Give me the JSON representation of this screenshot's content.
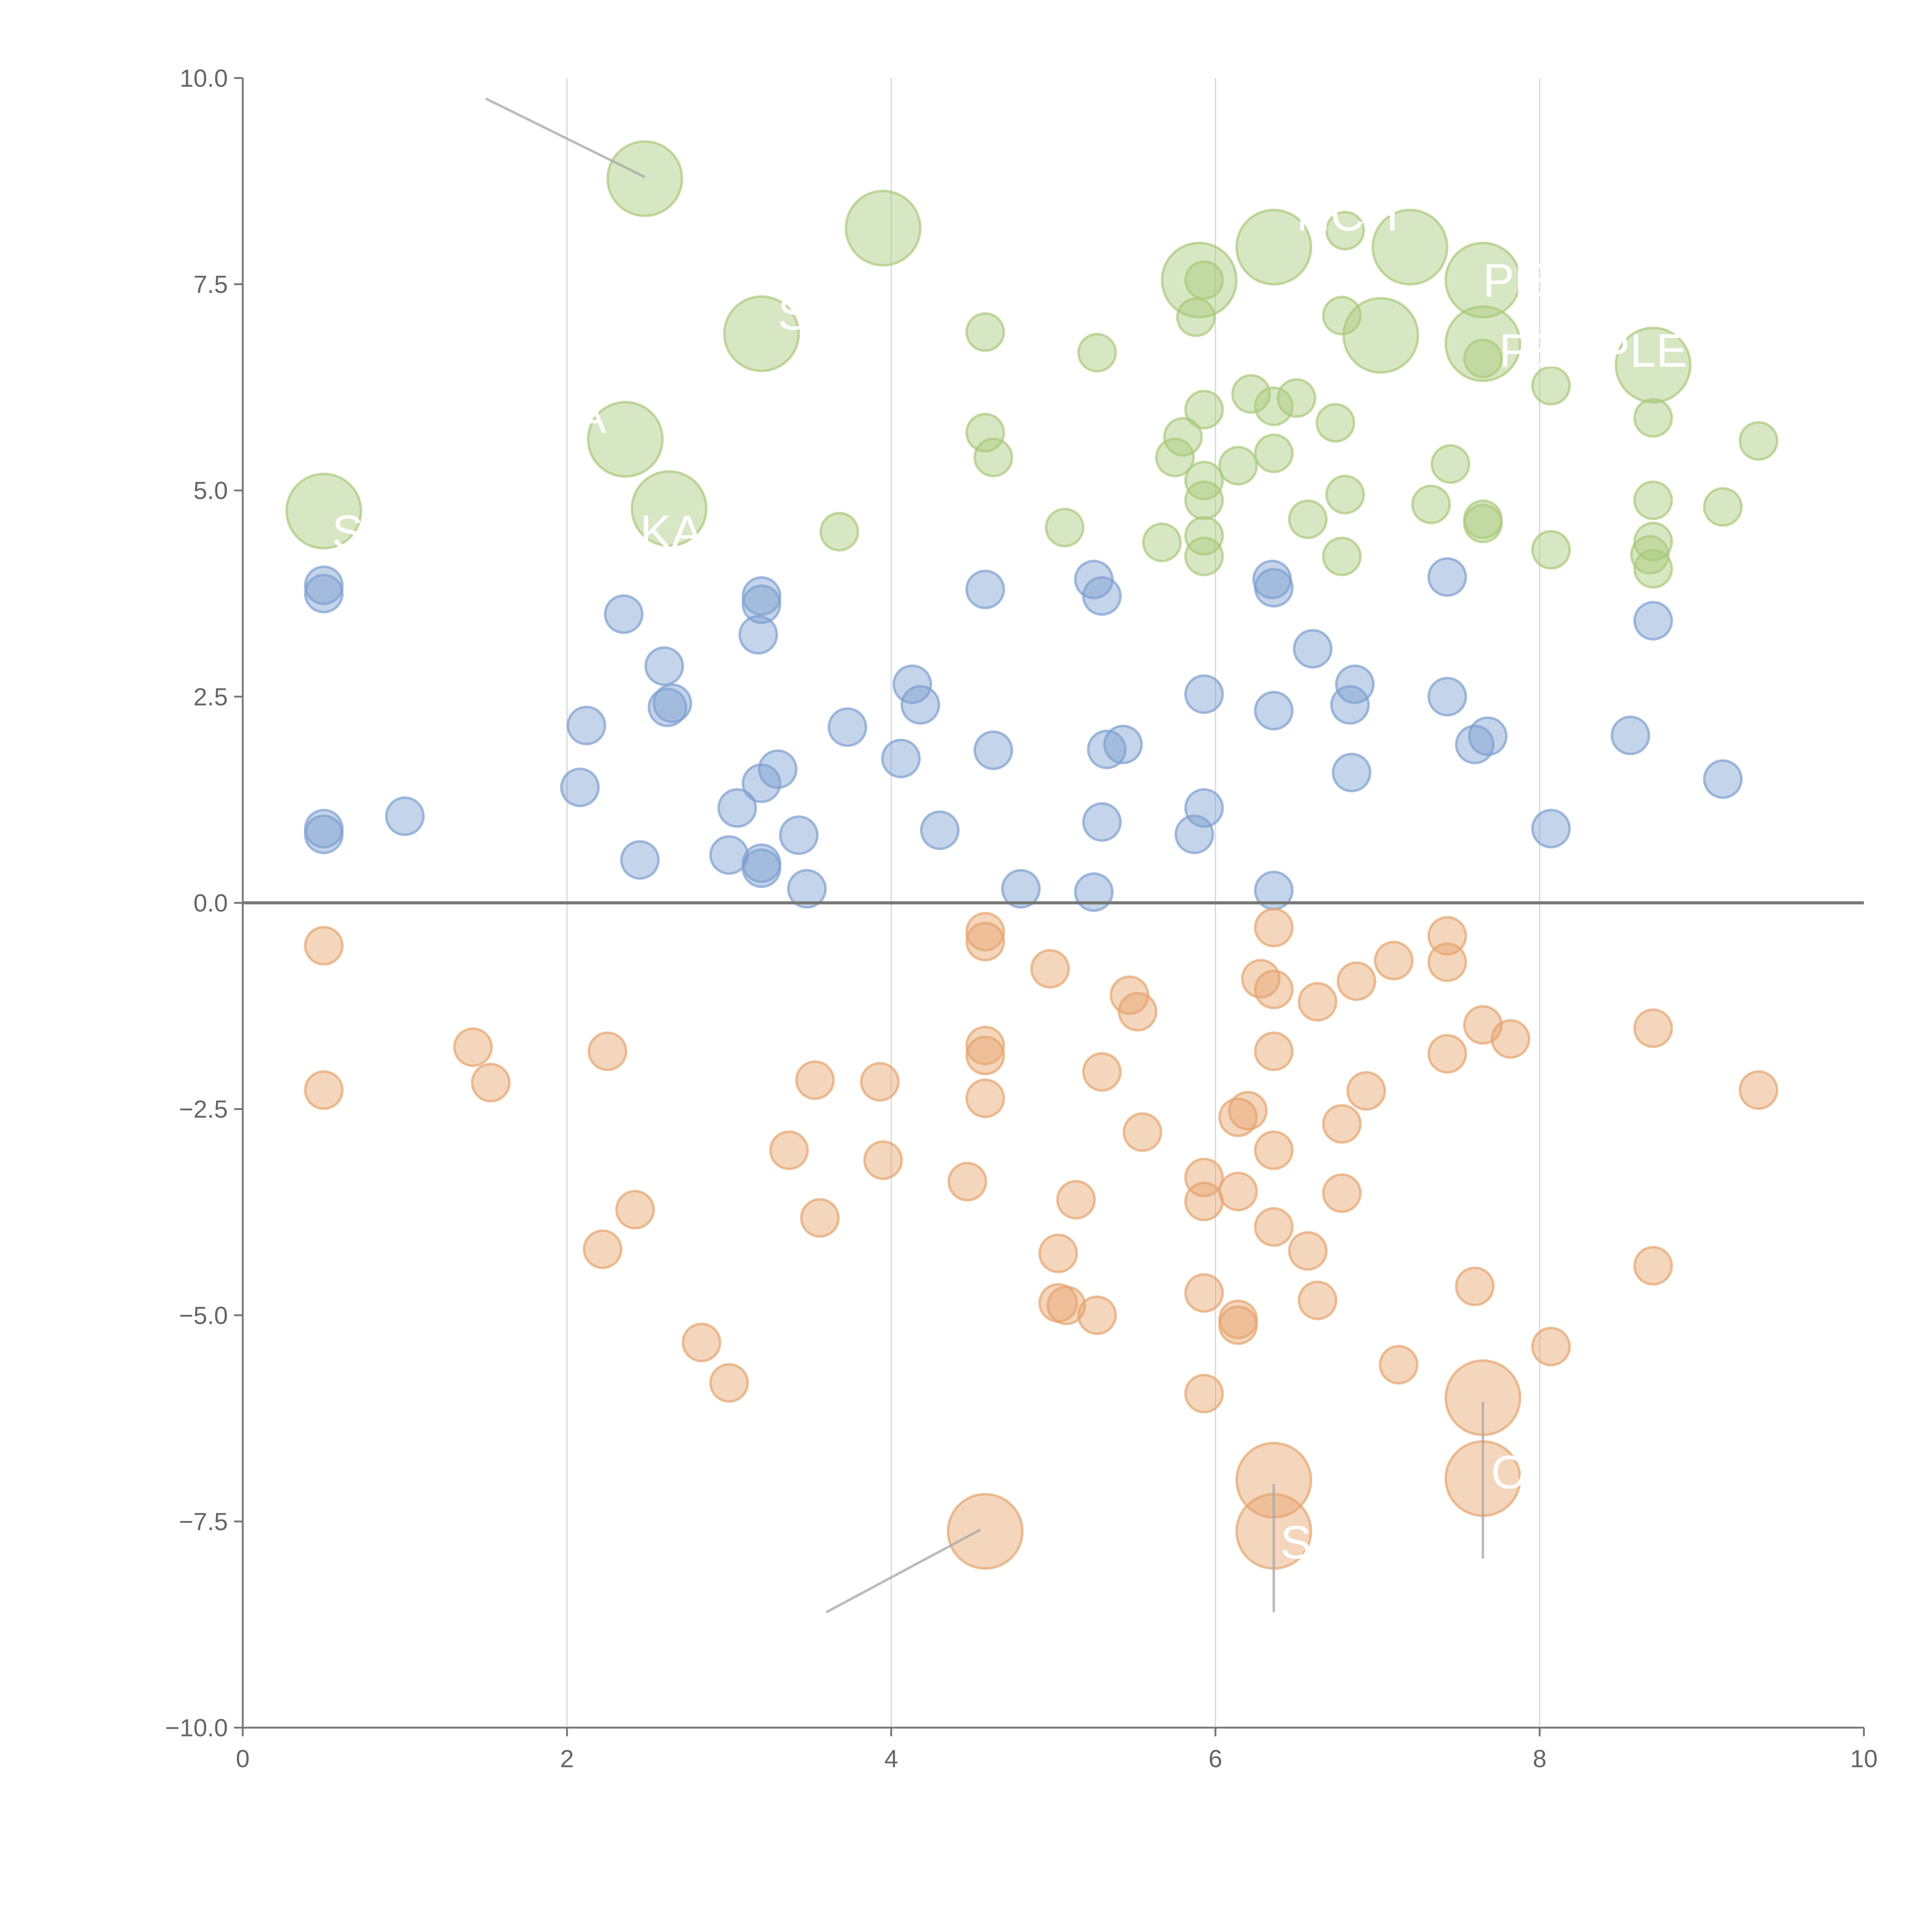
{
  "chart_data": {
    "type": "scatter",
    "title": "",
    "xlabel": "",
    "ylabel": "",
    "xlim": [
      0,
      10
    ],
    "ylim": [
      -10,
      10
    ],
    "grid": "vertical lines at x ticks",
    "x_ticks": [
      "0",
      "2",
      "4",
      "6",
      "8",
      "10"
    ],
    "x_tick_values": [
      0,
      2,
      4,
      6,
      8,
      10
    ],
    "y_ticks": [
      "10.0",
      "7.5",
      "5.0",
      "2.5",
      "0.0",
      "−2.5",
      "−5.0",
      "−7.5",
      "−10.0"
    ],
    "y_tick_values": [
      10,
      7.5,
      5,
      2.5,
      0,
      -2.5,
      -5,
      -7.5,
      -10
    ],
    "series": [
      {
        "name": "green",
        "color": "#a9c97a",
        "points": [
          [
            2.48,
            8.78,
            2
          ],
          [
            3.95,
            8.18,
            2
          ],
          [
            6.36,
            7.95,
            2
          ],
          [
            7.2,
            7.95,
            2
          ],
          [
            5.9,
            7.55,
            2
          ],
          [
            7.65,
            7.55,
            2
          ],
          [
            3.2,
            6.9,
            2
          ],
          [
            7.02,
            6.88,
            2
          ],
          [
            7.65,
            6.78,
            2
          ],
          [
            8.7,
            6.52,
            2
          ],
          [
            2.36,
            5.62,
            2
          ],
          [
            0.5,
            4.75,
            2
          ],
          [
            2.63,
            4.78,
            2
          ],
          [
            6.8,
            8.15,
            1
          ],
          [
            5.93,
            7.55,
            1
          ],
          [
            5.88,
            7.1,
            1
          ],
          [
            6.78,
            7.12,
            1
          ],
          [
            4.58,
            6.92,
            1
          ],
          [
            5.27,
            6.67,
            1
          ],
          [
            7.65,
            6.6,
            1
          ],
          [
            8.07,
            6.27,
            1
          ],
          [
            6.22,
            6.17,
            1
          ],
          [
            6.5,
            6.12,
            1
          ],
          [
            6.36,
            6.02,
            1
          ],
          [
            5.93,
            5.98,
            1
          ],
          [
            6.74,
            5.82,
            1
          ],
          [
            8.7,
            5.88,
            1
          ],
          [
            9.35,
            5.6,
            1
          ],
          [
            4.58,
            5.7,
            1
          ],
          [
            5.8,
            5.65,
            1
          ],
          [
            4.63,
            5.4,
            1
          ],
          [
            5.75,
            5.4,
            1
          ],
          [
            6.14,
            5.3,
            1
          ],
          [
            6.36,
            5.45,
            1
          ],
          [
            7.45,
            5.32,
            1
          ],
          [
            5.93,
            5.12,
            1
          ],
          [
            6.8,
            4.95,
            1
          ],
          [
            8.7,
            4.88,
            1
          ],
          [
            5.93,
            4.88,
            1
          ],
          [
            7.33,
            4.83,
            1
          ],
          [
            9.13,
            4.8,
            1
          ],
          [
            6.57,
            4.65,
            1
          ],
          [
            7.65,
            4.65,
            1
          ],
          [
            7.65,
            4.6,
            1
          ],
          [
            5.07,
            4.55,
            1
          ],
          [
            3.68,
            4.5,
            1
          ],
          [
            5.93,
            4.45,
            1
          ],
          [
            5.67,
            4.37,
            1
          ],
          [
            8.7,
            4.38,
            1
          ],
          [
            8.07,
            4.28,
            1
          ],
          [
            8.68,
            4.22,
            1
          ],
          [
            5.93,
            4.2,
            1
          ],
          [
            6.78,
            4.2,
            1
          ],
          [
            8.7,
            4.05,
            1
          ]
        ]
      },
      {
        "name": "blue",
        "color": "#7d9fd0",
        "points": [
          [
            0.5,
            3.85,
            1
          ],
          [
            0.5,
            3.75,
            1
          ],
          [
            2.35,
            3.5,
            1
          ],
          [
            3.2,
            3.72,
            1
          ],
          [
            3.2,
            3.62,
            1
          ],
          [
            3.18,
            3.25,
            1
          ],
          [
            4.58,
            3.8,
            1
          ],
          [
            5.25,
            3.92,
            1
          ],
          [
            5.3,
            3.72,
            1
          ],
          [
            6.35,
            3.92,
            1
          ],
          [
            6.36,
            3.82,
            1
          ],
          [
            7.43,
            3.95,
            1
          ],
          [
            8.7,
            3.42,
            1
          ],
          [
            6.6,
            3.08,
            1
          ],
          [
            2.6,
            2.87,
            1
          ],
          [
            2.65,
            2.42,
            1
          ],
          [
            2.62,
            2.37,
            1
          ],
          [
            4.13,
            2.65,
            1
          ],
          [
            4.18,
            2.4,
            1
          ],
          [
            6.86,
            2.65,
            1
          ],
          [
            5.93,
            2.53,
            1
          ],
          [
            7.43,
            2.5,
            1
          ],
          [
            6.83,
            2.4,
            1
          ],
          [
            6.36,
            2.33,
            1
          ],
          [
            2.12,
            2.15,
            1
          ],
          [
            3.73,
            2.13,
            1
          ],
          [
            8.56,
            2.03,
            1
          ],
          [
            7.68,
            2.02,
            1
          ],
          [
            7.6,
            1.92,
            1
          ],
          [
            5.43,
            1.92,
            1
          ],
          [
            5.33,
            1.86,
            1
          ],
          [
            4.63,
            1.85,
            1
          ],
          [
            4.06,
            1.75,
            1
          ],
          [
            3.3,
            1.62,
            1
          ],
          [
            6.84,
            1.58,
            1
          ],
          [
            3.2,
            1.45,
            1
          ],
          [
            9.13,
            1.5,
            1
          ],
          [
            2.08,
            1.4,
            1
          ],
          [
            3.05,
            1.15,
            1
          ],
          [
            5.93,
            1.15,
            1
          ],
          [
            1.0,
            1.05,
            1
          ],
          [
            5.3,
            0.98,
            1
          ],
          [
            8.07,
            0.9,
            1
          ],
          [
            0.5,
            0.9,
            1
          ],
          [
            0.5,
            0.83,
            1
          ],
          [
            4.3,
            0.88,
            1
          ],
          [
            5.87,
            0.83,
            1
          ],
          [
            3.43,
            0.82,
            1
          ],
          [
            3.0,
            0.58,
            1
          ],
          [
            2.45,
            0.52,
            1
          ],
          [
            3.2,
            0.48,
            1
          ],
          [
            3.2,
            0.42,
            1
          ],
          [
            3.48,
            0.17,
            1
          ],
          [
            4.8,
            0.17,
            1
          ],
          [
            5.25,
            0.13,
            1
          ],
          [
            6.36,
            0.15,
            1
          ]
        ]
      },
      {
        "name": "orange",
        "color": "#e6a46d",
        "points": [
          [
            0.5,
            -0.52,
            1
          ],
          [
            4.58,
            -0.35,
            1
          ],
          [
            4.58,
            -0.47,
            1
          ],
          [
            6.36,
            -0.3,
            1
          ],
          [
            7.43,
            -0.4,
            1
          ],
          [
            7.1,
            -0.7,
            1
          ],
          [
            7.43,
            -0.72,
            1
          ],
          [
            4.98,
            -0.8,
            1
          ],
          [
            6.28,
            -0.92,
            1
          ],
          [
            6.87,
            -0.95,
            1
          ],
          [
            6.36,
            -1.05,
            1
          ],
          [
            5.47,
            -1.12,
            1
          ],
          [
            6.63,
            -1.2,
            1
          ],
          [
            5.52,
            -1.32,
            1
          ],
          [
            7.65,
            -1.48,
            1
          ],
          [
            8.7,
            -1.52,
            1
          ],
          [
            7.82,
            -1.65,
            1
          ],
          [
            1.42,
            -1.75,
            1
          ],
          [
            2.25,
            -1.8,
            1
          ],
          [
            4.58,
            -1.73,
            1
          ],
          [
            4.58,
            -1.85,
            1
          ],
          [
            6.36,
            -1.8,
            1
          ],
          [
            7.43,
            -1.83,
            1
          ],
          [
            1.53,
            -2.18,
            1
          ],
          [
            3.53,
            -2.15,
            1
          ],
          [
            3.93,
            -2.17,
            1
          ],
          [
            5.3,
            -2.05,
            1
          ],
          [
            0.5,
            -2.27,
            1
          ],
          [
            9.35,
            -2.27,
            1
          ],
          [
            6.93,
            -2.28,
            1
          ],
          [
            4.58,
            -2.37,
            1
          ],
          [
            6.2,
            -2.52,
            1
          ],
          [
            6.14,
            -2.6,
            1
          ],
          [
            6.78,
            -2.68,
            1
          ],
          [
            5.55,
            -2.78,
            1
          ],
          [
            3.37,
            -3.0,
            1
          ],
          [
            6.36,
            -3.0,
            1
          ],
          [
            3.95,
            -3.12,
            1
          ],
          [
            5.93,
            -3.33,
            1
          ],
          [
            4.47,
            -3.38,
            1
          ],
          [
            6.14,
            -3.5,
            1
          ],
          [
            6.78,
            -3.52,
            1
          ],
          [
            5.93,
            -3.62,
            1
          ],
          [
            5.14,
            -3.6,
            1
          ],
          [
            2.42,
            -3.72,
            1
          ],
          [
            3.56,
            -3.82,
            1
          ],
          [
            6.36,
            -3.93,
            1
          ],
          [
            2.22,
            -4.2,
            1
          ],
          [
            5.03,
            -4.25,
            1
          ],
          [
            6.57,
            -4.22,
            1
          ],
          [
            8.7,
            -4.4,
            1
          ],
          [
            7.6,
            -4.65,
            1
          ],
          [
            5.93,
            -4.73,
            1
          ],
          [
            5.03,
            -4.85,
            1
          ],
          [
            5.08,
            -4.88,
            1
          ],
          [
            6.63,
            -4.82,
            1
          ],
          [
            5.27,
            -5.0,
            1
          ],
          [
            6.14,
            -5.05,
            1
          ],
          [
            6.14,
            -5.12,
            1
          ],
          [
            2.83,
            -5.33,
            1
          ],
          [
            8.07,
            -5.38,
            1
          ],
          [
            7.13,
            -5.6,
            1
          ],
          [
            3.0,
            -5.82,
            1
          ],
          [
            5.93,
            -5.95,
            1
          ],
          [
            7.65,
            -6.0,
            2
          ],
          [
            6.36,
            -7.0,
            2
          ],
          [
            7.65,
            -6.98,
            2
          ],
          [
            4.58,
            -7.62,
            2
          ],
          [
            6.36,
            -7.62,
            2
          ]
        ]
      }
    ],
    "leader_lines": [
      [
        [
          1.5,
          9.75
        ],
        [
          2.48,
          8.8
        ]
      ],
      [
        [
          3.6,
          -8.6
        ],
        [
          4.55,
          -7.6
        ]
      ],
      [
        [
          6.36,
          -7.05
        ],
        [
          6.36,
          -8.6
        ]
      ],
      [
        [
          7.65,
          -6.05
        ],
        [
          7.65,
          -7.95
        ]
      ]
    ],
    "annotations": [
      {
        "text": "S",
        "x": 0.55,
        "y": 4.3
      },
      {
        "text": "KA",
        "x": 2.45,
        "y": 4.3
      },
      {
        "text": "A",
        "x": 2.05,
        "y": 5.7
      },
      {
        "text": "S",
        "x": 3.3,
        "y": 6.95
      },
      {
        "text": "NCH",
        "x": 6.5,
        "y": 8.15
      },
      {
        "text": "PE",
        "x": 7.65,
        "y": 7.35
      },
      {
        "text": "PEOPLE",
        "x": 7.75,
        "y": 6.5
      },
      {
        "text": "O",
        "x": 7.7,
        "y": -7.1
      },
      {
        "text": "S",
        "x": 6.4,
        "y": -7.95
      }
    ]
  }
}
